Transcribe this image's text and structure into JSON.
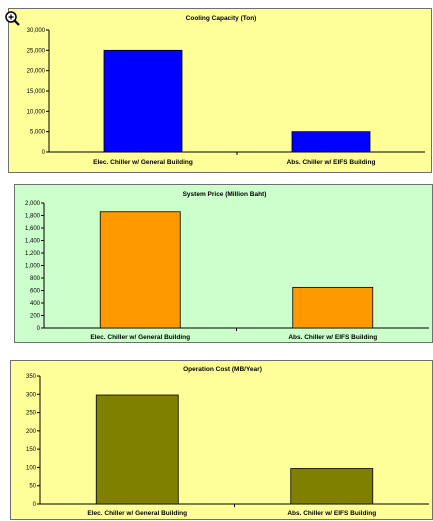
{
  "cursor": {
    "icon": "zoom-in-magnifier-icon"
  },
  "chart_data": [
    {
      "type": "bar",
      "title": "Cooling Capacity (Ton)",
      "categories": [
        "Elec. Chiller w/ General Building",
        "Abs. Chiller w/ EIFS Building"
      ],
      "values": [
        25000,
        5000
      ],
      "ylim": [
        0,
        30000
      ],
      "yticks": [
        "0",
        "5,000",
        "10,000",
        "15,000",
        "20,000",
        "25,000",
        "30,000"
      ],
      "bar_color": "#0000ff",
      "background": "#ffff99",
      "grid": false
    },
    {
      "type": "bar",
      "title": "System Price (Million Baht)",
      "categories": [
        "Elec. Chiller w/ General Building",
        "Abs. Chiller w/ EIFS Building"
      ],
      "values": [
        1860,
        650
      ],
      "ylim": [
        0,
        2000
      ],
      "yticks": [
        "0",
        "200",
        "400",
        "600",
        "800",
        "1,000",
        "1,200",
        "1,400",
        "1,600",
        "1,800",
        "2,000"
      ],
      "bar_color": "#ff9900",
      "background": "#ccffcc",
      "grid": false
    },
    {
      "type": "bar",
      "title": "Operation Cost (MB/Year)",
      "categories": [
        "Elec. Chiller w/ General Building",
        "Abs. Chiller w/ EIFS Building"
      ],
      "values": [
        298,
        97
      ],
      "ylim": [
        0,
        350
      ],
      "yticks": [
        "0",
        "50",
        "100",
        "150",
        "200",
        "250",
        "300",
        "350"
      ],
      "bar_color": "#808000",
      "background": "#ffff99",
      "grid": false
    }
  ]
}
